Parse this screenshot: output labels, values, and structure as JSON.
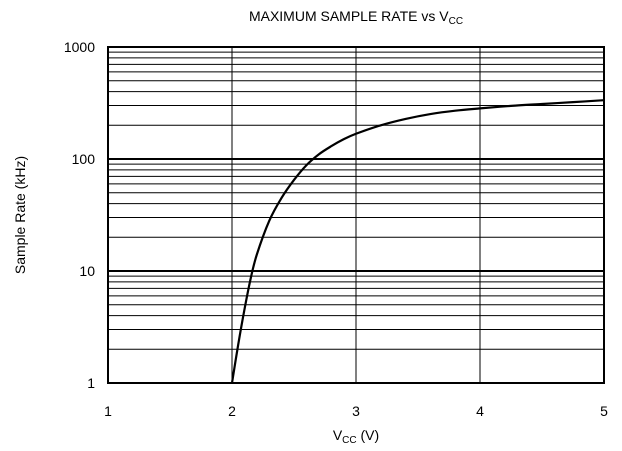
{
  "chart_data": {
    "type": "line",
    "title": {
      "main": "MAXIMUM SAMPLE RATE vs V",
      "sub": "CC"
    },
    "xlabel": {
      "main": "V",
      "sub": "CC",
      "unit": " (V)"
    },
    "ylabel": "Sample Rate (kHz)",
    "xlim": [
      1,
      5
    ],
    "ylim": [
      1,
      1000
    ],
    "yscale": "log",
    "x_ticks": [
      "1",
      "2",
      "3",
      "4",
      "5"
    ],
    "y_ticks": [
      "1",
      "10",
      "100",
      "1000"
    ],
    "grid": true,
    "series": [
      {
        "x": [
          2.0,
          2.05,
          2.1,
          2.15,
          2.2,
          2.3,
          2.4,
          2.5,
          2.6,
          2.7,
          2.8,
          2.9,
          3.0,
          3.2,
          3.4,
          3.6,
          3.8,
          4.0,
          4.25,
          4.5,
          4.75,
          5.0
        ],
        "y": [
          1.0,
          2.2,
          4.5,
          8.5,
          14,
          28,
          45,
          65,
          88,
          110,
          130,
          150,
          168,
          200,
          228,
          252,
          270,
          283,
          298,
          310,
          322,
          335
        ]
      }
    ],
    "colors": {
      "line": "#000000",
      "grid": "#000000",
      "background": "#ffffff"
    }
  }
}
